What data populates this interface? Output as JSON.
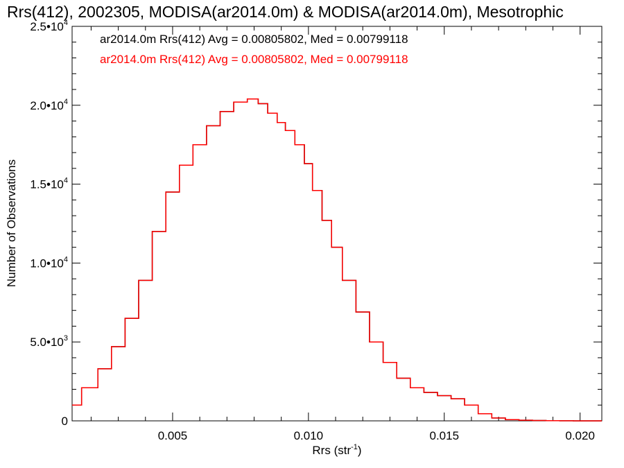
{
  "chart_data": {
    "type": "line",
    "title": "Rrs(412), 2002305, MODISA(ar2014.0m) & MODISA(ar2014.0m), Mesotrophic",
    "xlabel": "Rrs (str",
    "xlabel_sup": "-1",
    "xlabel_end": ")",
    "ylabel": "Number of Observations",
    "xlim": [
      0.0013,
      0.0208
    ],
    "ylim": [
      0,
      25000
    ],
    "x_ticks": [
      {
        "value": 0.005,
        "label": "0.005"
      },
      {
        "value": 0.01,
        "label": "0.010"
      },
      {
        "value": 0.015,
        "label": "0.015"
      },
      {
        "value": 0.02,
        "label": "0.020"
      }
    ],
    "y_ticks": [
      {
        "value": 0,
        "mant": "0",
        "exp": ""
      },
      {
        "value": 5000,
        "mant": "5.0•10",
        "exp": "3"
      },
      {
        "value": 10000,
        "mant": "1.0•10",
        "exp": "4"
      },
      {
        "value": 15000,
        "mant": "1.5•10",
        "exp": "4"
      },
      {
        "value": 20000,
        "mant": "2.0•10",
        "exp": "4"
      },
      {
        "value": 25000,
        "mant": "2.5•10",
        "exp": "4"
      }
    ],
    "series": [
      {
        "name": "ar2014.0m Rrs(412) Avg = 0.00805802, Med = 0.00799118",
        "color": "#000000",
        "x": [
          0.0013,
          0.002,
          0.0025,
          0.003,
          0.0035,
          0.004,
          0.0045,
          0.005,
          0.0055,
          0.006,
          0.0065,
          0.007,
          0.0075,
          0.008,
          0.0083,
          0.0087,
          0.009,
          0.0093,
          0.0097,
          0.01,
          0.0103,
          0.0107,
          0.011,
          0.0115,
          0.012,
          0.0125,
          0.013,
          0.0135,
          0.014,
          0.0145,
          0.015,
          0.0155,
          0.016,
          0.0165,
          0.017,
          0.0175,
          0.018,
          0.0185,
          0.019,
          0.0195,
          0.02,
          0.0208
        ],
        "y": [
          1000,
          2100,
          3300,
          4700,
          6500,
          8900,
          12000,
          14500,
          16200,
          17500,
          18700,
          19600,
          20200,
          20400,
          20100,
          19500,
          18900,
          18400,
          17500,
          16300,
          14600,
          12700,
          11000,
          8900,
          6900,
          5000,
          3700,
          2700,
          2100,
          1800,
          1600,
          1400,
          1000,
          450,
          180,
          80,
          40,
          20,
          10,
          5,
          2,
          0
        ]
      },
      {
        "name": "ar2014.0m Rrs(412) Avg = 0.00805802, Med = 0.00799118",
        "color": "#ff0000",
        "x": [
          0.0013,
          0.002,
          0.0025,
          0.003,
          0.0035,
          0.004,
          0.0045,
          0.005,
          0.0055,
          0.006,
          0.0065,
          0.007,
          0.0075,
          0.008,
          0.0083,
          0.0087,
          0.009,
          0.0093,
          0.0097,
          0.01,
          0.0103,
          0.0107,
          0.011,
          0.0115,
          0.012,
          0.0125,
          0.013,
          0.0135,
          0.014,
          0.0145,
          0.015,
          0.0155,
          0.016,
          0.0165,
          0.017,
          0.0175,
          0.018,
          0.0185,
          0.019,
          0.0195,
          0.02,
          0.0208
        ],
        "y": [
          1000,
          2100,
          3300,
          4700,
          6500,
          8900,
          12000,
          14500,
          16200,
          17500,
          18700,
          19600,
          20200,
          20400,
          20100,
          19500,
          18900,
          18400,
          17500,
          16300,
          14600,
          12700,
          11000,
          8900,
          6900,
          5000,
          3700,
          2700,
          2100,
          1800,
          1600,
          1400,
          1000,
          450,
          180,
          80,
          40,
          20,
          10,
          5,
          2,
          0
        ]
      }
    ],
    "legend_position": "top-left",
    "grid": false
  }
}
